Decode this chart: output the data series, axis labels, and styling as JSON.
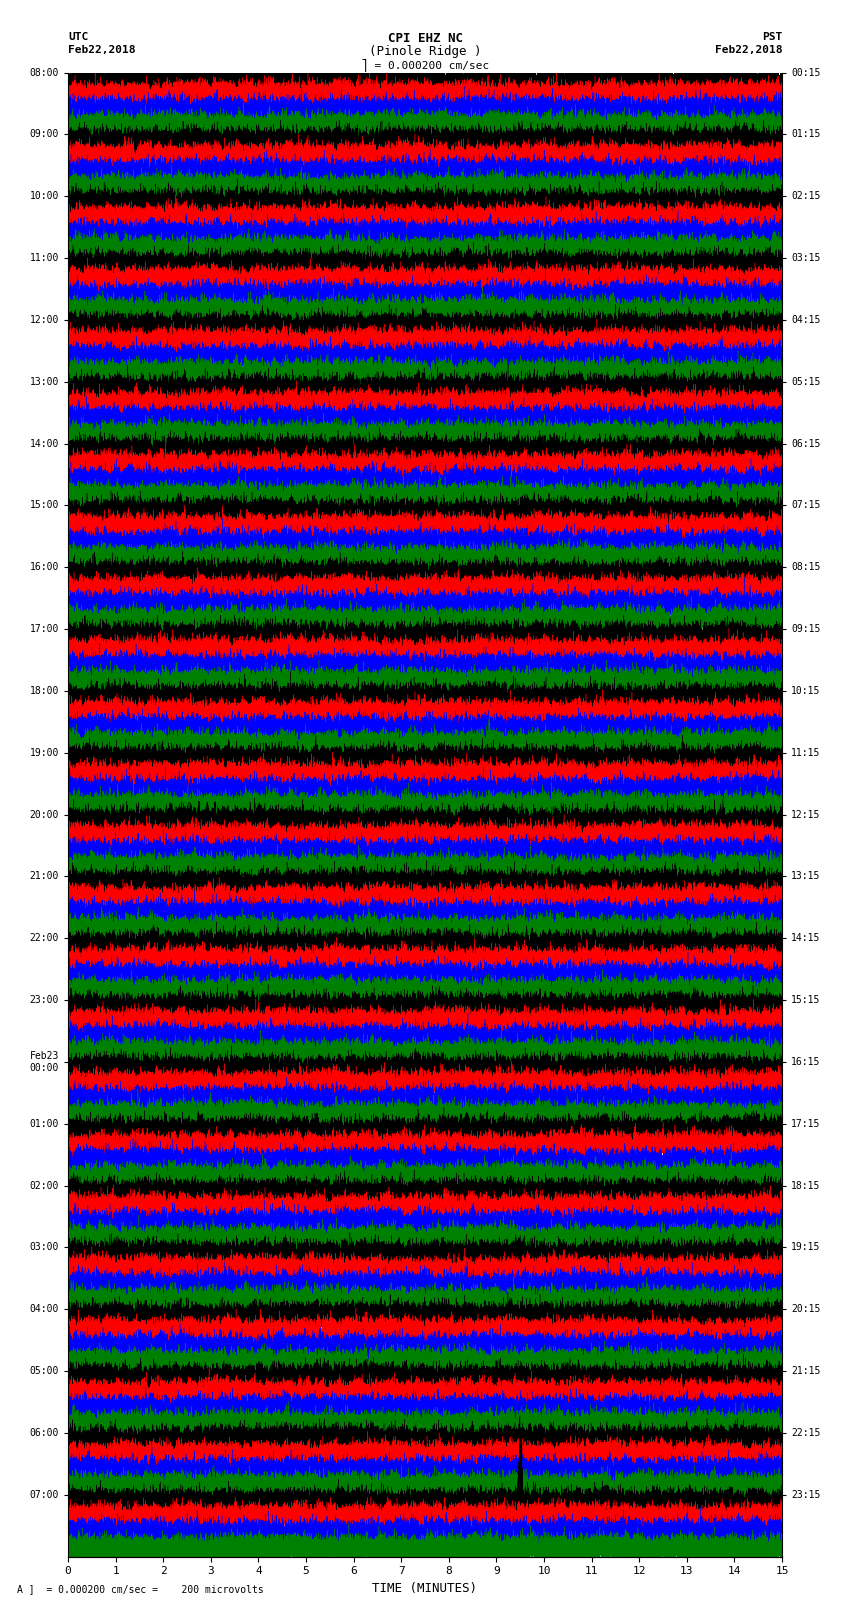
{
  "title_line1": "CPI EHZ NC",
  "title_line2": "(Pinole Ridge )",
  "scale_label": "= 0.000200 cm/sec",
  "bottom_label": "A ]  = 0.000200 cm/sec =    200 microvolts",
  "utc_header": "UTC",
  "utc_date": "Feb22,2018",
  "pst_header": "PST",
  "pst_date": "Feb22,2018",
  "xlabel": "TIME (MINUTES)",
  "utc_times": [
    "08:00",
    "09:00",
    "10:00",
    "11:00",
    "12:00",
    "13:00",
    "14:00",
    "15:00",
    "16:00",
    "17:00",
    "18:00",
    "19:00",
    "20:00",
    "21:00",
    "22:00",
    "23:00",
    "Feb23\n00:00",
    "01:00",
    "02:00",
    "03:00",
    "04:00",
    "05:00",
    "06:00",
    "07:00"
  ],
  "pst_times": [
    "00:15",
    "01:15",
    "02:15",
    "03:15",
    "04:15",
    "05:15",
    "06:15",
    "07:15",
    "08:15",
    "09:15",
    "10:15",
    "11:15",
    "12:15",
    "13:15",
    "14:15",
    "15:15",
    "16:15",
    "17:15",
    "18:15",
    "19:15",
    "20:15",
    "21:15",
    "22:15",
    "23:15"
  ],
  "colors": [
    "black",
    "red",
    "blue",
    "green"
  ],
  "n_rows": 24,
  "traces_per_row": 4,
  "minutes": 15,
  "sample_rate": 100,
  "background": "white",
  "line_width": 0.3,
  "grid_color": "#aaaaaa",
  "figsize": [
    8.5,
    16.13
  ],
  "amp_by_row": [
    0.8,
    0.6,
    0.5,
    0.5,
    0.5,
    0.6,
    0.9,
    1.0,
    1.1,
    1.2,
    1.1,
    1.0,
    1.2,
    2.5,
    2.8,
    3.0,
    3.2,
    3.0,
    2.0,
    1.2,
    0.8,
    0.7,
    0.9,
    2.5
  ],
  "spike_row": 0,
  "spike_minute": 5.0,
  "spike_amp": 8.0,
  "spike2_row": 23,
  "spike2_minute": 9.5,
  "spike2_amp": 6.0
}
